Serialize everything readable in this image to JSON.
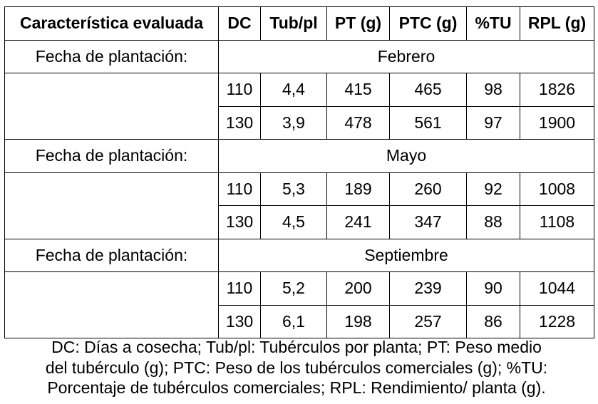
{
  "table": {
    "headers": [
      "Característica evaluada",
      "DC",
      "Tub/pl",
      "PT (g)",
      "PTC (g)",
      "%TU",
      "RPL (g)"
    ],
    "groups": [
      {
        "label": "Fecha de plantación:",
        "month": "Febrero",
        "rows": [
          [
            "110",
            "4,4",
            "415",
            "465",
            "98",
            "1826"
          ],
          [
            "130",
            "3,9",
            "478",
            "561",
            "97",
            "1900"
          ]
        ]
      },
      {
        "label": "Fecha de plantación:",
        "month": "Mayo",
        "rows": [
          [
            "110",
            "5,3",
            "189",
            "260",
            "92",
            "1008"
          ],
          [
            "130",
            "4,5",
            "241",
            "347",
            "88",
            "1108"
          ]
        ]
      },
      {
        "label": "Fecha de plantación:",
        "month": "Septiembre",
        "rows": [
          [
            "110",
            "5,2",
            "200",
            "239",
            "90",
            "1044"
          ],
          [
            "130",
            "6,1",
            "198",
            "257",
            "86",
            "1228"
          ]
        ]
      }
    ]
  },
  "footnote": {
    "lines": [
      "DC: Días a cosecha; Tub/pl: Tubérculos por planta; PT: Peso  medio",
      "del tubérculo (g); PTC: Peso de los tubérculos comerciales (g); %TU:",
      "Porcentaje de tubérculos comerciales; RPL: Rendimiento/ planta (g)."
    ]
  }
}
